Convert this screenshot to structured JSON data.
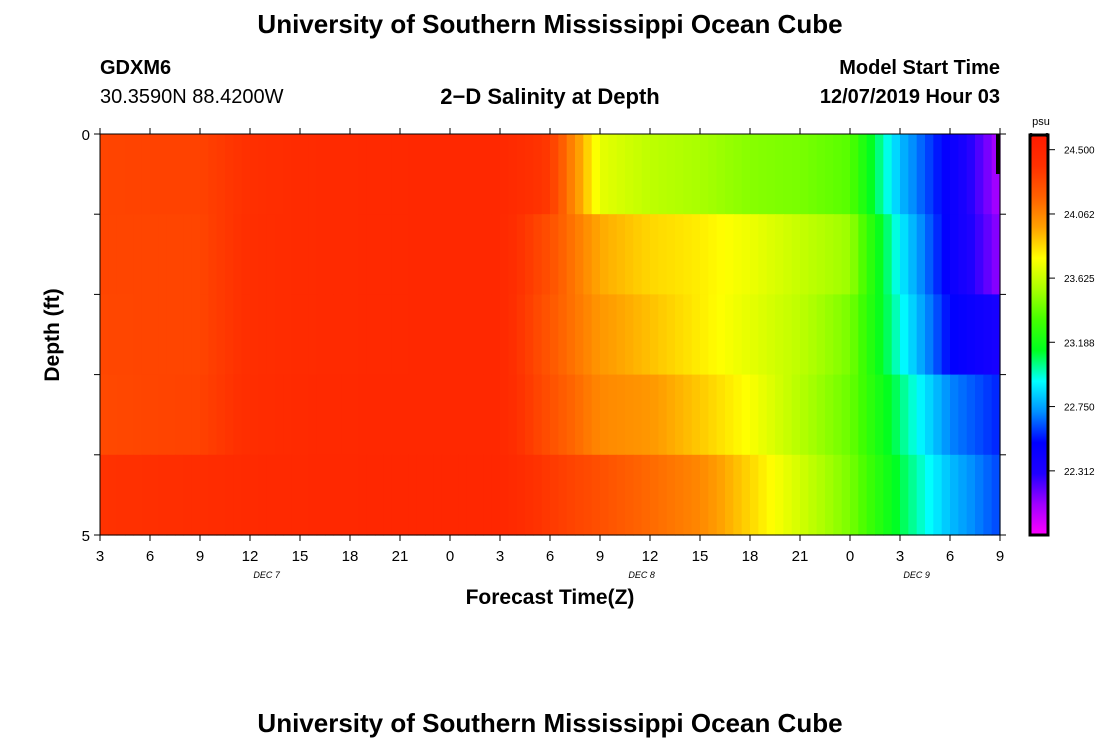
{
  "header": {
    "title_top": "University of Southern Mississippi Ocean Cube",
    "title_bottom": "University of Southern Mississippi Ocean Cube",
    "station_id": "GDXM6",
    "station_coords": "30.3590N 88.4200W",
    "chart_title": "2−D Salinity at Depth",
    "start_label": "Model Start Time",
    "start_value": "12/07/2019 Hour 03"
  },
  "chart_data": {
    "type": "heatmap",
    "title": "2−D Salinity at Depth",
    "xlabel": "Forecast Time(Z)",
    "ylabel": "Depth (ft)",
    "x_hours": [
      3,
      6,
      9,
      12,
      15,
      18,
      21,
      24,
      27,
      30,
      33,
      36,
      39,
      42,
      45,
      48,
      51,
      54,
      57
    ],
    "x_tick_labels": [
      "3",
      "6",
      "9",
      "12",
      "15",
      "18",
      "21",
      "0",
      "3",
      "6",
      "9",
      "12",
      "15",
      "18",
      "21",
      "0",
      "3",
      "6",
      "9"
    ],
    "x_range_hours": [
      3,
      57
    ],
    "date_labels": [
      {
        "text": "DEC 7",
        "hour": 13
      },
      {
        "text": "DEC 8",
        "hour": 35.5
      },
      {
        "text": "DEC 9",
        "hour": 52
      }
    ],
    "y_tick_labels": [
      "0",
      "5"
    ],
    "y_range": [
      0,
      5
    ],
    "depth_levels": [
      0.5,
      1.5,
      2.5,
      3.5,
      4.5
    ],
    "values": [
      [
        24.3,
        24.31,
        24.31,
        24.4,
        24.44,
        24.45,
        24.46,
        24.47,
        24.47,
        24.35,
        23.7,
        23.6,
        23.55,
        23.48,
        23.45,
        23.38,
        22.8,
        22.45,
        22.05
      ],
      [
        24.3,
        24.3,
        24.3,
        24.41,
        24.44,
        24.45,
        24.46,
        24.47,
        24.47,
        24.25,
        23.95,
        23.85,
        23.8,
        23.72,
        23.62,
        23.52,
        22.9,
        22.45,
        22.1
      ],
      [
        24.29,
        24.3,
        24.3,
        24.41,
        24.44,
        24.45,
        24.46,
        24.47,
        24.47,
        24.22,
        24.0,
        23.9,
        23.8,
        23.7,
        23.6,
        23.45,
        22.95,
        22.5,
        22.35
      ],
      [
        24.28,
        24.3,
        24.31,
        24.42,
        24.45,
        24.46,
        24.47,
        24.47,
        24.47,
        24.25,
        24.05,
        24.0,
        23.88,
        23.75,
        23.58,
        23.42,
        23.05,
        22.7,
        22.55
      ],
      [
        24.38,
        24.4,
        24.42,
        24.45,
        24.46,
        24.47,
        24.48,
        24.48,
        24.48,
        24.35,
        24.25,
        24.15,
        24.05,
        23.85,
        23.65,
        23.45,
        23.1,
        22.8,
        22.6
      ]
    ],
    "colorbar": {
      "unit": "psu",
      "min": 21.875,
      "max": 24.6,
      "tick_values": [
        24.5,
        24.062,
        23.625,
        23.188,
        22.75,
        22.312
      ],
      "tick_labels": [
        "24.500",
        "24.062",
        "23.625",
        "23.188",
        "22.750",
        "22.312"
      ],
      "colors": [
        "#ff00ff",
        "#a000ff",
        "#2000ff",
        "#0000ff",
        "#0090ff",
        "#00ffff",
        "#00ff20",
        "#44ff00",
        "#aaff00",
        "#ffff00",
        "#ffa000",
        "#ff6000",
        "#ff3000",
        "#ff1a00"
      ]
    }
  }
}
